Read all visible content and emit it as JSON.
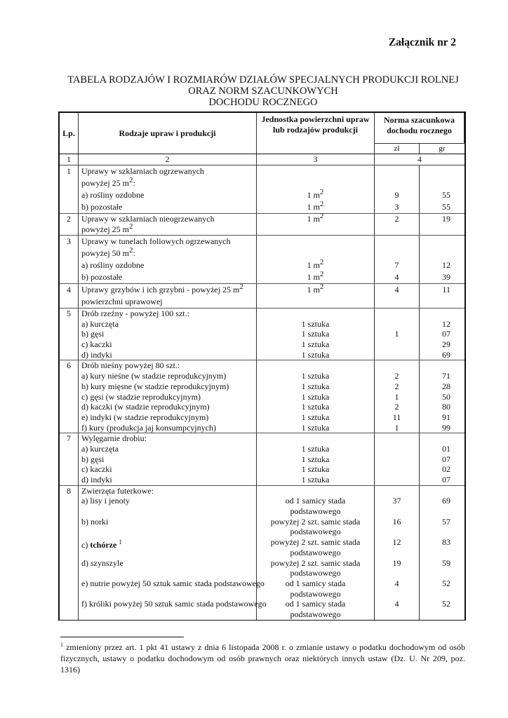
{
  "annex_label": "Załącznik nr 2",
  "title_lines": [
    "TABELA RODZAJÓW I ROZMIARÓW DZIAŁÓW SPECJALNYCH PRODUKCJI ROLNEJ",
    "ORAZ NORM SZACUNKOWYCH",
    "DOCHODU ROCZNEGO"
  ],
  "table": {
    "headers": {
      "lp": "Lp.",
      "desc": "Rodzaje upraw i produkcji",
      "unit": "Jednostka powierzchni upraw lub rodzajów produkcji",
      "norm": "Norma szacunkowa dochodu rocznego",
      "zl": "zł",
      "gr": "gr"
    },
    "column_numbers": [
      "1",
      "2",
      "3",
      "4"
    ],
    "rows": [
      {
        "lp": "1",
        "lines": [
          {
            "d": "Uprawy w szklarniach ogrzewanych"
          },
          {
            "d": "powyżej 25 m",
            "ds": "2",
            "dt": ":"
          },
          {
            "d": "a) rośliny ozdobne",
            "u": "1 m",
            "us": "2",
            "zl": "9",
            "gr": "55"
          },
          {
            "d": "b) pozostałe",
            "u": "1 m",
            "us": "2",
            "zl": "3",
            "gr": "55"
          }
        ]
      },
      {
        "lp": "2",
        "lines": [
          {
            "d": "Uprawy w szklarniach nieogrzewanych",
            "u": "1 m",
            "us": "2",
            "zl": "2",
            "gr": "19"
          },
          {
            "d": "powyżej 25 m",
            "ds": "2"
          }
        ]
      },
      {
        "lp": "3",
        "lines": [
          {
            "d": "Uprawy w tunelach foliowych ogrzewanych"
          },
          {
            "d": "powyżej 50 m",
            "ds": "2",
            "dt": ":"
          },
          {
            "d": "a) rośliny ozdobne",
            "u": "1 m",
            "us": "2",
            "zl": "7",
            "gr": "12"
          },
          {
            "d": "b) pozostałe",
            "u": "1 m",
            "us": "2",
            "zl": "4",
            "gr": "39"
          }
        ]
      },
      {
        "lp": "4",
        "lines": [
          {
            "d": "Uprawy grzybów i ich grzybni - powyżej 25 m",
            "ds": "2",
            "u": "1 m",
            "us": "2",
            "zl": "4",
            "gr": "11"
          },
          {
            "d": "powierzchni uprawowej"
          }
        ]
      },
      {
        "lp": "5",
        "lines": [
          {
            "d": "Drób rzeźny - powyżej 100 szt.:"
          },
          {
            "d": "a) kurczęta",
            "u": "1 sztuka",
            "gr": "12"
          },
          {
            "d": "b) gęsi",
            "u": "1 sztuka",
            "zl": "1",
            "gr": "07"
          },
          {
            "d": "c) kaczki",
            "u": "1 sztuka",
            "gr": "29"
          },
          {
            "d": "d) indyki",
            "u": "1 sztuka",
            "gr": "69"
          }
        ]
      },
      {
        "lp": "6",
        "lines": [
          {
            "d": "Drób nieśny powyżej 80 szt.:"
          },
          {
            "d": "a) kury nieśne (w stadzie reprodukcyjnym)",
            "u": "1 sztuka",
            "zl": "2",
            "gr": "71"
          },
          {
            "d": "b) kury mięsne (w stadzie reprodukcyjnym)",
            "u": "1 sztuka",
            "zl": "2",
            "gr": "28"
          },
          {
            "d": "c) gęsi (w stadzie reprodukcyjnym)",
            "u": "1 sztuka",
            "zl": "1",
            "gr": "50"
          },
          {
            "d": "d) kaczki (w stadzie reprodukcyjnym)",
            "u": "1 sztuka",
            "zl": "2",
            "gr": "80"
          },
          {
            "d": "e) indyki (w stadzie reprodukcyjnym)",
            "u": "1 sztuka",
            "zl": "11",
            "gr": "91"
          },
          {
            "d": "f) kury (produkcja jaj konsumpcyjnych)",
            "u": "1 sztuka",
            "zl": "1",
            "gr": "99"
          }
        ]
      },
      {
        "lp": "7",
        "lines": [
          {
            "d": "Wylęgarnie drobiu:"
          },
          {
            "d": "a) kurczęta",
            "u": "1 sztuka",
            "gr": "01"
          },
          {
            "d": "b) gęsi",
            "u": "1 sztuka",
            "gr": "07"
          },
          {
            "d": "c) kaczki",
            "u": "1 sztuka",
            "gr": "02"
          },
          {
            "d": "d) indyki",
            "u": "1 sztuka",
            "gr": "07"
          }
        ]
      },
      {
        "lp": "8",
        "lines": [
          {
            "d": "Zwierzęta futerkowe:"
          },
          {
            "d": "a) lisy i jenoty",
            "u": "od 1 samicy stada",
            "zl": "37",
            "gr": "69"
          },
          {
            "u": "podstawowego"
          },
          {
            "d": "b) norki",
            "u": "powyżej 2 szt. samic stada",
            "zl": "16",
            "gr": "57"
          },
          {
            "u": "podstawowego"
          },
          {
            "d": "c) ",
            "db": "tchórze",
            "fn": "1",
            "u": "powyżej 2 szt. samic stada",
            "zl": "12",
            "gr": "83"
          },
          {
            "u": "podstawowego"
          },
          {
            "d": "d) szynszyle",
            "u": "powyżej 2 szt. samic stada",
            "zl": "19",
            "gr": "59"
          },
          {
            "u": "podstawowego"
          },
          {
            "d": "e) nutrie powyżej 50 sztuk samic stada podstawowego",
            "u": "od 1 samicy stada",
            "zl": "4",
            "gr": "52"
          },
          {
            "u": "podstawowego"
          },
          {
            "d": "f) króliki powyżej 50 sztuk samic stada podstawowego",
            "u": "od 1 samicy stada",
            "zl": "4",
            "gr": "52"
          },
          {
            "u": "podstawowego"
          }
        ]
      }
    ]
  },
  "footnote": {
    "marker": "1",
    "text": "zmieniony przez art. 1 pkt 41 ustawy z dnia 6 listopada 2008 r. o zmianie ustawy o podatku dochodowym od osób fizycznych, ustawy o podatku dochodowym od osób prawnych oraz niektórych innych ustaw (Dz. U. Nr 209, poz. 1316)"
  }
}
